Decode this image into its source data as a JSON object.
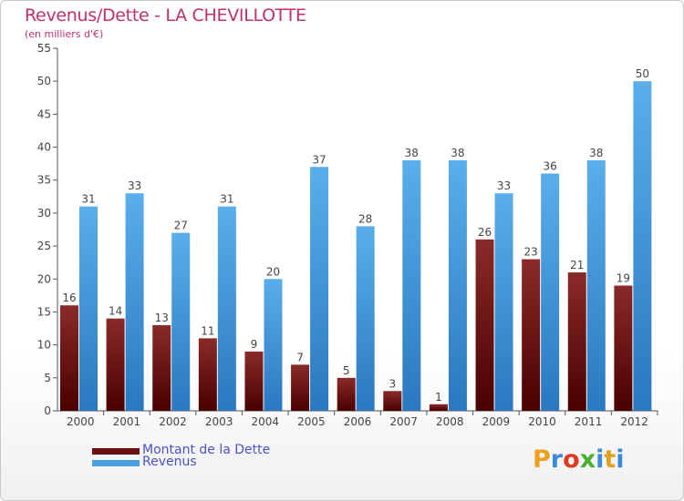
{
  "header": {
    "title": "Revenus/Dette - LA CHEVILLOTTE",
    "subtitle": "(en milliers d'€)"
  },
  "colors": {
    "dette": "#7a1a1a",
    "revenus": "#4aa0e0",
    "title": "#c0306c"
  },
  "legend": {
    "dette_label": "Montant de la Dette",
    "revenus_label": "Revenus"
  },
  "logo": {
    "text": "Proxiti",
    "letters": [
      "P",
      "r",
      "o",
      "x",
      "i",
      "t",
      "i"
    ]
  },
  "chart_data": {
    "type": "bar",
    "title": "Revenus/Dette - LA CHEVILLOTTE",
    "ylabel": "(en milliers d'€)",
    "xlabel": "",
    "categories": [
      "2000",
      "2001",
      "2002",
      "2003",
      "2004",
      "2005",
      "2006",
      "2007",
      "2008",
      "2009",
      "2010",
      "2011",
      "2012"
    ],
    "series": [
      {
        "name": "Montant de la Dette",
        "values": [
          16,
          14,
          13,
          11,
          9,
          7,
          5,
          3,
          1,
          26,
          23,
          21,
          19
        ]
      },
      {
        "name": "Revenus",
        "values": [
          31,
          33,
          27,
          31,
          20,
          37,
          28,
          38,
          38,
          33,
          36,
          38,
          50
        ]
      }
    ],
    "ylim": [
      0,
      55
    ],
    "yticks": [
      0,
      5,
      10,
      15,
      20,
      25,
      30,
      35,
      40,
      45,
      50,
      55
    ],
    "grid": false,
    "legend_position": "bottom-left"
  }
}
